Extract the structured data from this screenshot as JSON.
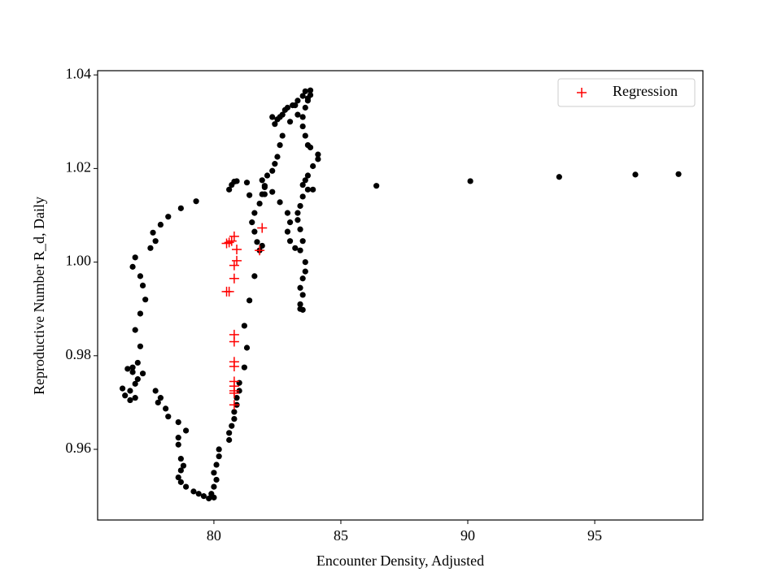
{
  "chart_data": {
    "type": "scatter",
    "x_label": "Encounter Density, Adjusted",
    "y_label": "Reproductive Number R_d, Daily",
    "xlim": [
      75.42,
      99.26
    ],
    "ylim": [
      0.9449,
      1.0409
    ],
    "xticks": [
      80,
      85,
      90,
      95
    ],
    "yticks": [
      0.96,
      0.98,
      {
        "value": 1,
        "label": "1.00"
      },
      1.02,
      1.04
    ],
    "legend": "upper right",
    "series": [
      {
        "color": "#000000",
        "marker": "o",
        "x": [
          79.3,
          78.7,
          78.2,
          77.9,
          77.6,
          77.7,
          77.5,
          76.9,
          76.8,
          77.1,
          77.2,
          77.3,
          77.1,
          76.9,
          77.1,
          77.0,
          76.8,
          76.6,
          76.8,
          77.2,
          77.0,
          76.9,
          76.7,
          76.4,
          76.5,
          76.7,
          76.9,
          77.7,
          77.9,
          77.8,
          78.1,
          78.2,
          78.6,
          78.9,
          78.6,
          78.6,
          78.7,
          78.8,
          78.7,
          78.6,
          78.7,
          78.9,
          79.2,
          79.4,
          79.6,
          79.8,
          80.0,
          79.9,
          80.0,
          80.1,
          80.0,
          80.1,
          80.2,
          80.2,
          80.6,
          80.6,
          80.7,
          80.8,
          80.8,
          80.9,
          80.9,
          81.0,
          81.0,
          81.2,
          81.3,
          81.2,
          81.4,
          81.6,
          81.8,
          81.9,
          81.7,
          81.6,
          81.5,
          81.6,
          81.8,
          81.9,
          82.0,
          81.9,
          82.1,
          82.3,
          82.4,
          82.5,
          82.6,
          82.7,
          82.4,
          82.6,
          82.8,
          83.1,
          83.3,
          83.5,
          83.6,
          83.8,
          83.7,
          83.6,
          83.5,
          83.5,
          83.6,
          83.7,
          83.8,
          84.1,
          84.1,
          83.9,
          83.7,
          83.6,
          83.5,
          83.9,
          83.7,
          83.5,
          83.4,
          83.3,
          83.3,
          83.4,
          83.5,
          83.4,
          83.6,
          83.6,
          83.5,
          83.4,
          83.5,
          83.4,
          83.4,
          83.5,
          80.6,
          80.7,
          80.8,
          80.9,
          81.4,
          81.3,
          82.0,
          82.0,
          82.3,
          82.6,
          82.9,
          83.0,
          82.9,
          83.0,
          83.2,
          82.3,
          82.5,
          82.7,
          82.9,
          83.2,
          83.0,
          83.3,
          83.7,
          83.8,
          86.4,
          90.1,
          93.6,
          96.6,
          98.3
        ],
        "values": [
          1.013,
          1.0115,
          1.0097,
          1.008,
          1.0063,
          1.0045,
          1.003,
          1.001,
          0.999,
          0.997,
          0.995,
          0.992,
          0.989,
          0.9855,
          0.982,
          0.9785,
          0.9775,
          0.9772,
          0.9765,
          0.9762,
          0.975,
          0.974,
          0.9725,
          0.973,
          0.9715,
          0.9705,
          0.971,
          0.9725,
          0.971,
          0.97,
          0.9687,
          0.967,
          0.9658,
          0.964,
          0.9625,
          0.961,
          0.958,
          0.9565,
          0.9555,
          0.954,
          0.953,
          0.952,
          0.951,
          0.9505,
          0.95,
          0.9495,
          0.9497,
          0.9505,
          0.952,
          0.9535,
          0.955,
          0.9567,
          0.9585,
          0.96,
          0.962,
          0.9635,
          0.965,
          0.9665,
          0.968,
          0.9695,
          0.971,
          0.9725,
          0.9742,
          0.9775,
          0.9817,
          0.9864,
          0.9918,
          0.997,
          1.0025,
          1.0035,
          1.0043,
          1.0065,
          1.0085,
          1.0105,
          1.0125,
          1.0145,
          1.016,
          1.0175,
          1.0185,
          1.0195,
          1.021,
          1.0225,
          1.025,
          1.027,
          1.0295,
          1.031,
          1.0325,
          1.0335,
          1.0345,
          1.0355,
          1.0365,
          1.0367,
          1.035,
          1.033,
          1.031,
          1.029,
          1.027,
          1.025,
          1.0245,
          1.023,
          1.022,
          1.0205,
          1.0185,
          1.0175,
          1.0165,
          1.0155,
          1.0155,
          1.014,
          1.012,
          1.0105,
          1.009,
          1.007,
          1.0045,
          1.0025,
          1.0,
          0.998,
          0.9965,
          0.9945,
          0.993,
          0.991,
          0.99,
          0.9898,
          1.0155,
          1.0165,
          1.0172,
          1.0173,
          1.0143,
          1.017,
          1.0145,
          1.0163,
          1.015,
          1.0128,
          1.0105,
          1.0085,
          1.0065,
          1.0045,
          1.003,
          1.031,
          1.0305,
          1.0315,
          1.033,
          1.0335,
          1.03,
          1.0315,
          1.0345,
          1.0357,
          1.0163,
          1.0173,
          1.0182,
          1.0187,
          1.0188
        ]
      },
      {
        "name": "Regression",
        "color": "#ff0000",
        "marker": "+",
        "x": [
          80.6,
          80.5,
          80.8,
          80.7,
          80.9,
          80.9,
          80.8,
          80.8,
          80.5,
          80.6,
          80.8,
          80.8,
          80.8,
          80.8,
          80.8,
          80.8,
          80.8,
          80.8,
          80.8,
          81.9,
          81.8
        ],
        "values": [
          1.0042,
          1.004,
          1.0055,
          1.0045,
          1.0027,
          1.0003,
          0.9993,
          0.9965,
          0.9937,
          0.9937,
          0.9845,
          0.983,
          0.9787,
          0.9777,
          0.9745,
          0.9735,
          0.9725,
          0.972,
          0.9695,
          1.0073,
          1.0025
        ]
      }
    ]
  }
}
